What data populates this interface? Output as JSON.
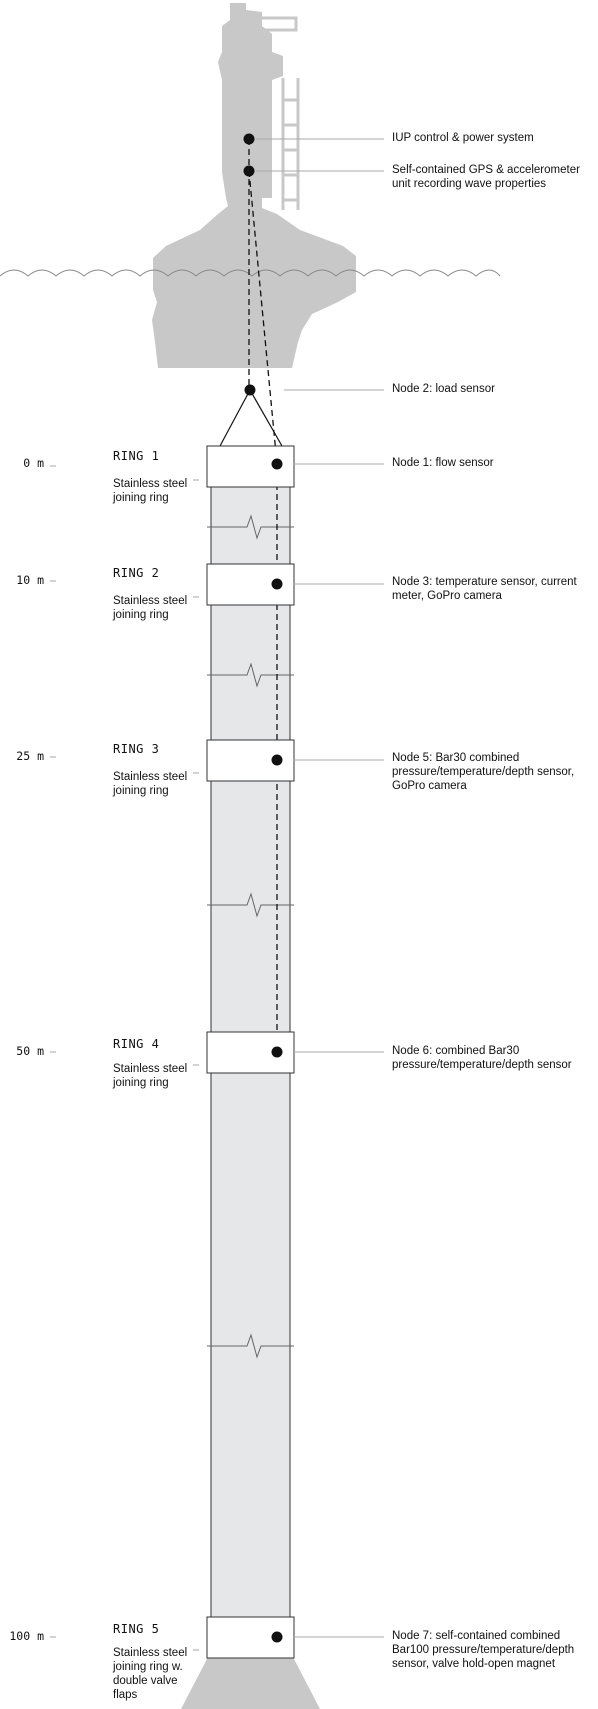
{
  "annotations": {
    "iup": "IUP control & power system",
    "gps": "Self-contained GPS & accelerometer unit recording wave properties",
    "node2": "Node 2: load sensor"
  },
  "rings": [
    {
      "title": "RING 1",
      "desc": "Stainless steel joining ring",
      "depth": "0 m",
      "node": "Node 1: flow sensor"
    },
    {
      "title": "RING 2",
      "desc": "Stainless steel joining ring",
      "depth": "10 m",
      "node": "Node 3: temperature sensor, current meter, GoPro camera"
    },
    {
      "title": "RING 3",
      "desc": "Stainless steel joining ring",
      "depth": "25 m",
      "node": "Node 5: Bar30 combined pressure/temperature/depth sensor, GoPro camera"
    },
    {
      "title": "RING 4",
      "desc": "Stainless steel joining ring",
      "depth": "50 m",
      "node": "Node 6: combined Bar30 pressure/temperature/depth sensor"
    },
    {
      "title": "RING 5",
      "desc": "Stainless steel joining ring w. double valve flaps",
      "depth": "100 m",
      "node": "Node 7: self-contained combined Bar100 pressure/temperature/depth sensor, valve hold-open magnet"
    }
  ],
  "colors": {
    "buoy": "#c8c8c8",
    "pipe": "#e6e7e9",
    "line": "#333333",
    "leader": "#aaaaaa"
  }
}
